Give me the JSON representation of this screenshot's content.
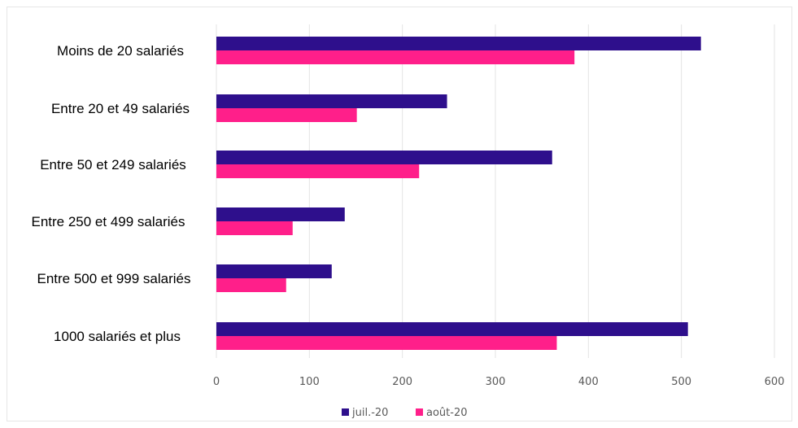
{
  "chart_data": {
    "type": "bar",
    "orientation": "horizontal",
    "categories": [
      "Moins de 20 salariés",
      "Entre 20 et 49 salariés",
      "Entre 50 et 249 salariés",
      "Entre 250 et 499 salariés",
      "Entre 500 et 999 salariés",
      "1000 salariés et plus"
    ],
    "series": [
      {
        "name": "juil.-20",
        "color": "#2e0f8c",
        "values": [
          521,
          248,
          361,
          138,
          124,
          507
        ]
      },
      {
        "name": "août-20",
        "color": "#ff1f8a",
        "values": [
          385,
          151,
          218,
          82,
          75,
          366
        ]
      }
    ],
    "xticks": [
      "0",
      "100",
      "200",
      "300",
      "400",
      "500",
      "600"
    ],
    "xlim": [
      0,
      600
    ],
    "grid": true,
    "legend_position": "bottom"
  }
}
